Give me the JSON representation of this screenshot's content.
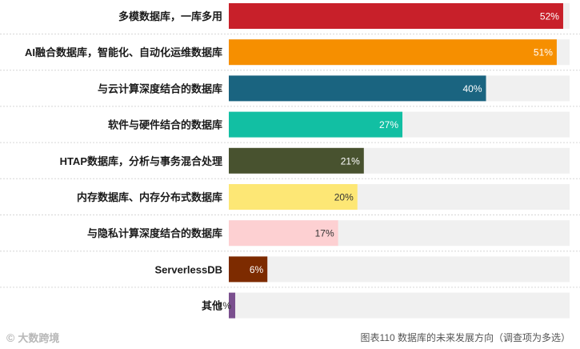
{
  "chart_data": {
    "type": "bar",
    "orientation": "horizontal",
    "categories": [
      "多模数据库，一库多用",
      "AI融合数据库，智能化、自动化运维数据库",
      "与云计算深度结合的数据库",
      "软件与硬件结合的数据库",
      "HTAP数据库，分析与事务混合处理",
      "内存数据库、内存分布式数据库",
      "与隐私计算深度结合的数据库",
      "ServerlessDB",
      "其他"
    ],
    "values": [
      52,
      51,
      40,
      27,
      21,
      20,
      17,
      6,
      1
    ],
    "value_labels": [
      "52%",
      "51%",
      "40%",
      "27%",
      "21%",
      "20%",
      "17%",
      "6%",
      "1%"
    ],
    "colors": [
      "#c8202a",
      "#f68f00",
      "#1a6480",
      "#12bfa3",
      "#48522f",
      "#fde775",
      "#fdd0d2",
      "#7d2b00",
      "#7a4f8e"
    ],
    "label_colors": [
      "#ffffff",
      "#ffffff",
      "#ffffff",
      "#ffffff",
      "#ffffff",
      "#333333",
      "#333333",
      "#ffffff",
      "#333333"
    ],
    "xlim": [
      0,
      53
    ],
    "title": "",
    "xlabel": "",
    "ylabel": "",
    "grid": false,
    "track_color": "#f0f0f0"
  },
  "footer": {
    "logo_text": "大数跨境",
    "caption": "图表110 数据库的未来发展方向（调查项为多选）"
  }
}
